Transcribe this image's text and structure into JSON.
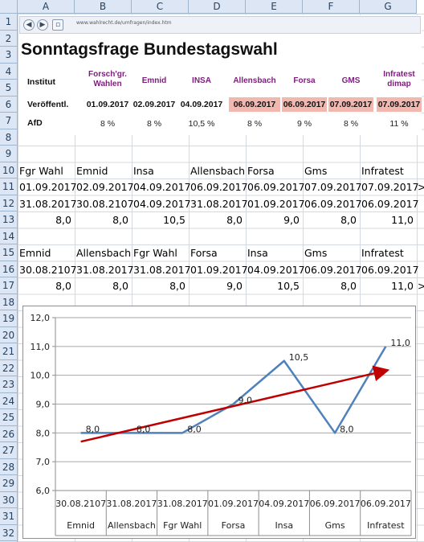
{
  "spreadsheet": {
    "columns": [
      "A",
      "B",
      "C",
      "D",
      "E",
      "F",
      "G"
    ],
    "rows": [
      "1",
      "2",
      "3",
      "4",
      "5",
      "6",
      "7",
      "8",
      "9",
      "10",
      "11",
      "12",
      "13",
      "14",
      "15",
      "16",
      "17",
      "18",
      "19",
      "20",
      "21",
      "22",
      "23",
      "24",
      "25",
      "26",
      "27",
      "28",
      "29",
      "30",
      "31",
      "32",
      "33"
    ]
  },
  "browser": {
    "url": "www.wahlrecht.de/umfragen/index.htm"
  },
  "embedded_table": {
    "title": "Sonntagsfrage Bundestagswahl",
    "row_labels": [
      "Institut",
      "Veröffentl.",
      "AfD"
    ],
    "institutes": [
      {
        "name": "Forsch'gr. Wahlen",
        "date": "01.09.2017",
        "value": "8 %",
        "highlight": false
      },
      {
        "name": "Emnid",
        "date": "02.09.2017",
        "value": "8 %",
        "highlight": false
      },
      {
        "name": "INSA",
        "date": "04.09.2017",
        "value": "10,5 %",
        "highlight": false
      },
      {
        "name": "Allensbach",
        "date": "06.09.2017",
        "value": "8 %",
        "highlight": true
      },
      {
        "name": "Forsa",
        "date": "06.09.2017",
        "value": "9 %",
        "highlight": true
      },
      {
        "name": "GMS",
        "date": "07.09.2017",
        "value": "8 %",
        "highlight": true
      },
      {
        "name": "Infratest dimap",
        "date": "07.09.2017",
        "value": "11 %",
        "highlight": true
      }
    ]
  },
  "block1": {
    "headers": [
      "Fgr Wahl",
      "Emnid",
      "Insa",
      "Allensbach",
      "Forsa",
      "Gms",
      "Infratest"
    ],
    "row_pub": [
      "01.09.2017",
      "02.09.2017",
      "04.09.2017",
      "06.09.2017",
      "06.09.2017",
      "07.09.2017",
      "07.09.2017"
    ],
    "row_field": [
      "31.08.2017",
      "30.08.2107",
      "04.09.2017",
      "31.08.2017",
      "01.09.2017",
      "06.09.2017",
      "06.09.2017"
    ],
    "row_values": [
      "8,0",
      "8,0",
      "10,5",
      "8,0",
      "9,0",
      "8,0",
      "11,0"
    ],
    "overflow": ">"
  },
  "block2": {
    "headers": [
      "Emnid",
      "Allensbach",
      "Fgr Wahl",
      "Forsa",
      "Insa",
      "Gms",
      "Infratest"
    ],
    "row_dates": [
      "30.08.2107",
      "31.08.2017",
      "31.08.2017",
      "01.09.2017",
      "04.09.2017",
      "06.09.2017",
      "06.09.2017"
    ],
    "row_values": [
      "8,0",
      "8,0",
      "8,0",
      "9,0",
      "10,5",
      "8,0",
      "11,0"
    ],
    "overflow": ">"
  },
  "chart_data": {
    "type": "line",
    "categories": [
      "30.08.2107",
      "31.08.2017",
      "31.08.2017",
      "01.09.2017",
      "04.09.2017",
      "06.09.2017",
      "06.09.2017"
    ],
    "category_groups": [
      "Emnid",
      "Allensbach",
      "Fgr Wahl",
      "Forsa",
      "Insa",
      "Gms",
      "Infratest"
    ],
    "series": [
      {
        "values": [
          8.0,
          8.0,
          8.0,
          9.0,
          10.5,
          8.0,
          11.0
        ],
        "data_labels": [
          "8,0",
          "8,0",
          "8,0",
          "9,0",
          "10,5",
          "8,0",
          "11,0"
        ],
        "color": "#4f81bd"
      }
    ],
    "trendline": {
      "type": "linear",
      "color": "#c00000"
    },
    "ylim": [
      6.0,
      12.0
    ],
    "yticks": [
      "6,0",
      "7,0",
      "8,0",
      "9,0",
      "10,0",
      "11,0",
      "12,0"
    ],
    "grid": true,
    "legend": "none",
    "title": "",
    "xlabel": "",
    "ylabel": ""
  },
  "colors": {
    "header_bg": "#dce6f4",
    "highlight": "#f2b8b0",
    "institute_text": "#7a1e7a",
    "line": "#4f81bd",
    "trend": "#c00000"
  }
}
